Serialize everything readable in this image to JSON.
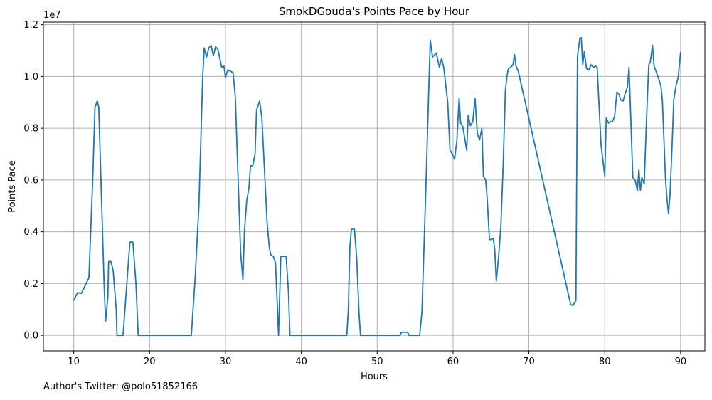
{
  "chart_data": {
    "type": "line",
    "title": "SmokDGouda's Points Pace by Hour",
    "xlabel": "Hours",
    "ylabel": "Points Pace",
    "y_multiplier_label": "1e7",
    "xlim": [
      6.0,
      93.2
    ],
    "ylim": [
      -0.06,
      1.21
    ],
    "xticks": [
      10,
      20,
      30,
      40,
      50,
      60,
      70,
      80,
      90
    ],
    "yticks": [
      0.0,
      0.2,
      0.4,
      0.6,
      0.8,
      1.0,
      1.2
    ],
    "ytick_labels": [
      "0.0",
      "0.2",
      "0.4",
      "0.6",
      "0.8",
      "1.0",
      "1.2"
    ],
    "grid": true,
    "line_color": "#1f77b4",
    "series": [
      {
        "points": [
          [
            10.0,
            0.135
          ],
          [
            10.5,
            0.165
          ],
          [
            11.0,
            0.162
          ],
          [
            12.0,
            0.222
          ],
          [
            12.5,
            0.6
          ],
          [
            12.8,
            0.88
          ],
          [
            13.1,
            0.905
          ],
          [
            13.3,
            0.88
          ],
          [
            14.0,
            0.2
          ],
          [
            14.2,
            0.055
          ],
          [
            14.5,
            0.15
          ],
          [
            14.6,
            0.285
          ],
          [
            14.9,
            0.285
          ],
          [
            15.2,
            0.25
          ],
          [
            15.6,
            0.1
          ],
          [
            15.7,
            0.0
          ],
          [
            16.5,
            0.0
          ],
          [
            17.0,
            0.2
          ],
          [
            17.4,
            0.36
          ],
          [
            17.8,
            0.36
          ],
          [
            18.2,
            0.2
          ],
          [
            18.5,
            0.0
          ],
          [
            25.5,
            0.0
          ],
          [
            26.0,
            0.22
          ],
          [
            26.5,
            0.5
          ],
          [
            27.0,
            1.0
          ],
          [
            27.2,
            1.11
          ],
          [
            27.5,
            1.075
          ],
          [
            27.8,
            1.11
          ],
          [
            28.1,
            1.12
          ],
          [
            28.4,
            1.08
          ],
          [
            28.7,
            1.115
          ],
          [
            29.0,
            1.105
          ],
          [
            29.5,
            1.035
          ],
          [
            29.8,
            1.04
          ],
          [
            30.0,
            0.995
          ],
          [
            30.3,
            1.025
          ],
          [
            31.0,
            1.015
          ],
          [
            31.3,
            0.92
          ],
          [
            32.0,
            0.32
          ],
          [
            32.3,
            0.215
          ],
          [
            32.5,
            0.4
          ],
          [
            32.8,
            0.52
          ],
          [
            33.1,
            0.57
          ],
          [
            33.3,
            0.655
          ],
          [
            33.6,
            0.655
          ],
          [
            33.9,
            0.7
          ],
          [
            34.1,
            0.87
          ],
          [
            34.5,
            0.905
          ],
          [
            34.8,
            0.84
          ],
          [
            35.5,
            0.43
          ],
          [
            35.8,
            0.335
          ],
          [
            36.0,
            0.31
          ],
          [
            36.3,
            0.305
          ],
          [
            36.6,
            0.28
          ],
          [
            37.0,
            0.0
          ],
          [
            37.3,
            0.305
          ],
          [
            38.0,
            0.305
          ],
          [
            38.3,
            0.17
          ],
          [
            38.5,
            0.0
          ],
          [
            46.0,
            0.0
          ],
          [
            46.2,
            0.1
          ],
          [
            46.4,
            0.34
          ],
          [
            46.6,
            0.41
          ],
          [
            47.0,
            0.41
          ],
          [
            47.3,
            0.3
          ],
          [
            47.6,
            0.09
          ],
          [
            47.8,
            0.0
          ],
          [
            53.0,
            0.0
          ],
          [
            53.2,
            0.012
          ],
          [
            54.0,
            0.012
          ],
          [
            54.2,
            0.0
          ],
          [
            55.6,
            0.0
          ],
          [
            55.9,
            0.09
          ],
          [
            56.4,
            0.55
          ],
          [
            56.8,
            0.95
          ],
          [
            57.0,
            1.14
          ],
          [
            57.3,
            1.075
          ],
          [
            57.8,
            1.09
          ],
          [
            58.2,
            1.035
          ],
          [
            58.5,
            1.07
          ],
          [
            58.8,
            1.03
          ],
          [
            59.3,
            0.9
          ],
          [
            59.6,
            0.715
          ],
          [
            60.0,
            0.695
          ],
          [
            60.2,
            0.68
          ],
          [
            60.5,
            0.75
          ],
          [
            60.8,
            0.915
          ],
          [
            61.0,
            0.82
          ],
          [
            61.3,
            0.805
          ],
          [
            61.8,
            0.715
          ],
          [
            62.0,
            0.85
          ],
          [
            62.3,
            0.81
          ],
          [
            62.6,
            0.825
          ],
          [
            62.9,
            0.915
          ],
          [
            63.2,
            0.78
          ],
          [
            63.5,
            0.755
          ],
          [
            63.8,
            0.8
          ],
          [
            64.0,
            0.615
          ],
          [
            64.3,
            0.6
          ],
          [
            64.5,
            0.53
          ],
          [
            64.8,
            0.37
          ],
          [
            65.0,
            0.37
          ],
          [
            65.3,
            0.375
          ],
          [
            65.5,
            0.33
          ],
          [
            65.7,
            0.21
          ],
          [
            66.0,
            0.3
          ],
          [
            66.3,
            0.42
          ],
          [
            66.6,
            0.65
          ],
          [
            66.9,
            0.945
          ],
          [
            67.1,
            1.0
          ],
          [
            67.3,
            1.03
          ],
          [
            67.6,
            1.035
          ],
          [
            67.9,
            1.045
          ],
          [
            68.1,
            1.085
          ],
          [
            68.3,
            1.04
          ],
          [
            68.6,
            1.02
          ],
          [
            75.5,
            0.12
          ],
          [
            75.8,
            0.115
          ],
          [
            76.2,
            0.135
          ],
          [
            76.4,
            1.075
          ],
          [
            76.7,
            1.145
          ],
          [
            76.9,
            1.15
          ],
          [
            77.1,
            1.045
          ],
          [
            77.3,
            1.095
          ],
          [
            77.6,
            1.03
          ],
          [
            77.9,
            1.025
          ],
          [
            78.2,
            1.045
          ],
          [
            78.5,
            1.035
          ],
          [
            78.8,
            1.04
          ],
          [
            79.0,
            1.035
          ],
          [
            79.5,
            0.74
          ],
          [
            80.0,
            0.615
          ],
          [
            80.2,
            0.84
          ],
          [
            80.5,
            0.82
          ],
          [
            80.8,
            0.825
          ],
          [
            81.0,
            0.825
          ],
          [
            81.3,
            0.845
          ],
          [
            81.6,
            0.94
          ],
          [
            81.9,
            0.93
          ],
          [
            82.1,
            0.91
          ],
          [
            82.4,
            0.905
          ],
          [
            82.7,
            0.935
          ],
          [
            83.0,
            0.96
          ],
          [
            83.2,
            1.035
          ],
          [
            83.7,
            0.61
          ],
          [
            84.0,
            0.6
          ],
          [
            84.3,
            0.56
          ],
          [
            84.5,
            0.64
          ],
          [
            84.7,
            0.56
          ],
          [
            84.9,
            0.61
          ],
          [
            85.2,
            0.585
          ],
          [
            85.5,
            0.83
          ],
          [
            85.8,
            1.045
          ],
          [
            86.0,
            1.055
          ],
          [
            86.3,
            1.12
          ],
          [
            86.5,
            1.04
          ],
          [
            87.0,
            1.0
          ],
          [
            87.4,
            0.965
          ],
          [
            87.6,
            0.905
          ],
          [
            88.0,
            0.61
          ],
          [
            88.2,
            0.53
          ],
          [
            88.4,
            0.47
          ],
          [
            88.6,
            0.54
          ],
          [
            88.9,
            0.75
          ],
          [
            89.1,
            0.91
          ],
          [
            89.4,
            0.965
          ],
          [
            89.7,
            1.0
          ],
          [
            90.0,
            1.095
          ]
        ]
      }
    ]
  },
  "footer": {
    "text": "Author's Twitter: @polo51852166"
  }
}
